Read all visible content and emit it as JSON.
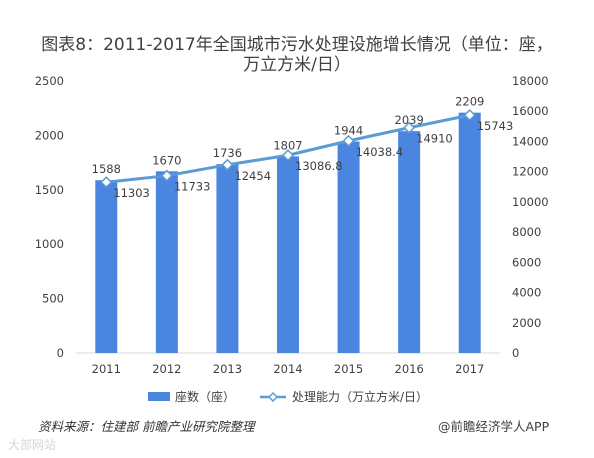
{
  "chart_title_line1": "图表8：2011-2017年全国城市污水处理设施增长情况（单位：座，",
  "chart_title_line2": "万立方米/日）",
  "source_note": "资料来源：住建部 前瞻产业研究院整理",
  "brand": "@前瞻经济学人APP",
  "watermark_corner": "大部网站",
  "colors": {
    "bar": "#4a86e0",
    "line": "#5b9bd5",
    "axis": "#d9d9d9",
    "text": "#404040"
  },
  "chart_data": {
    "type": "bar",
    "categories": [
      "2011",
      "2012",
      "2013",
      "2014",
      "2015",
      "2016",
      "2017"
    ],
    "series": [
      {
        "name": "座数（座）",
        "type": "bar",
        "axis": "left",
        "values": [
          1588,
          1670,
          1736,
          1807,
          1944,
          2039,
          2209
        ],
        "labels": [
          "1588",
          "1670",
          "1736",
          "1807",
          "1944",
          "2039",
          "2209"
        ]
      },
      {
        "name": "处理能力（万立方米/日）",
        "type": "line",
        "axis": "right",
        "marker": "diamond",
        "values": [
          11303,
          11733,
          12454,
          13086.8,
          14038.4,
          14910,
          15743
        ],
        "labels": [
          "11303",
          "11733",
          "12454",
          "13086.8",
          "14038.4",
          "14910",
          "15743"
        ]
      }
    ],
    "y_left": {
      "min": 0,
      "max": 2500,
      "ticks": [
        "0",
        "500",
        "1000",
        "1500",
        "2000",
        "2500"
      ]
    },
    "y_right": {
      "min": 0,
      "max": 18000,
      "ticks": [
        "0",
        "2000",
        "4000",
        "6000",
        "8000",
        "10000",
        "12000",
        "14000",
        "16000",
        "18000"
      ]
    },
    "legend_position": "bottom",
    "grid": false
  }
}
